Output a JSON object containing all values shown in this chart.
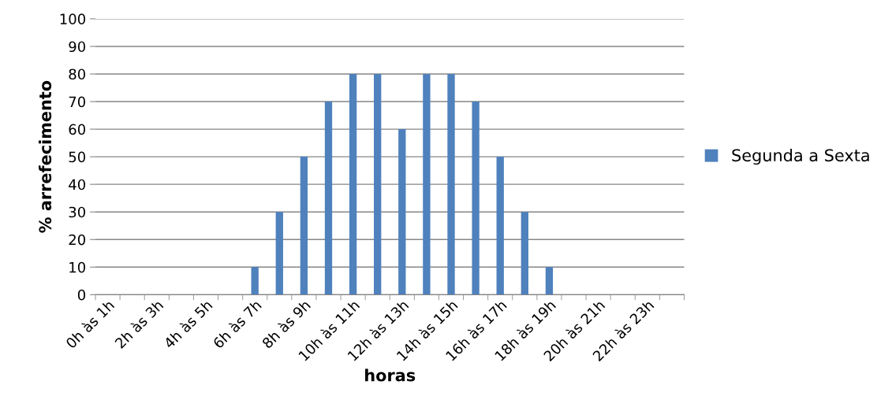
{
  "chart_data": {
    "type": "bar",
    "xlabel": "horas",
    "ylabel": "% arrefecimento",
    "categories": [
      "0h às 1h",
      null,
      "2h às 3h",
      null,
      "4h às 5h",
      null,
      "6h às 7h",
      null,
      "8h às 9h",
      null,
      "10h às 11h",
      null,
      "12h às 13h",
      null,
      "14h às 15h",
      null,
      "16h às 17h",
      null,
      "18h às 19h",
      null,
      "20h às 21h",
      null,
      "22h às 23h",
      null
    ],
    "series": [
      {
        "name": "Segunda a Sexta",
        "color": "#4f81bd",
        "values": [
          0,
          0,
          0,
          0,
          0,
          0,
          10,
          30,
          50,
          70,
          80,
          80,
          60,
          80,
          80,
          70,
          50,
          30,
          10,
          0,
          0,
          0,
          0,
          0
        ]
      }
    ],
    "ylim": [
      0,
      100
    ],
    "yticks": [
      0,
      10,
      20,
      30,
      40,
      50,
      60,
      70,
      80,
      90,
      100
    ],
    "grid": "y",
    "legend": "right"
  }
}
